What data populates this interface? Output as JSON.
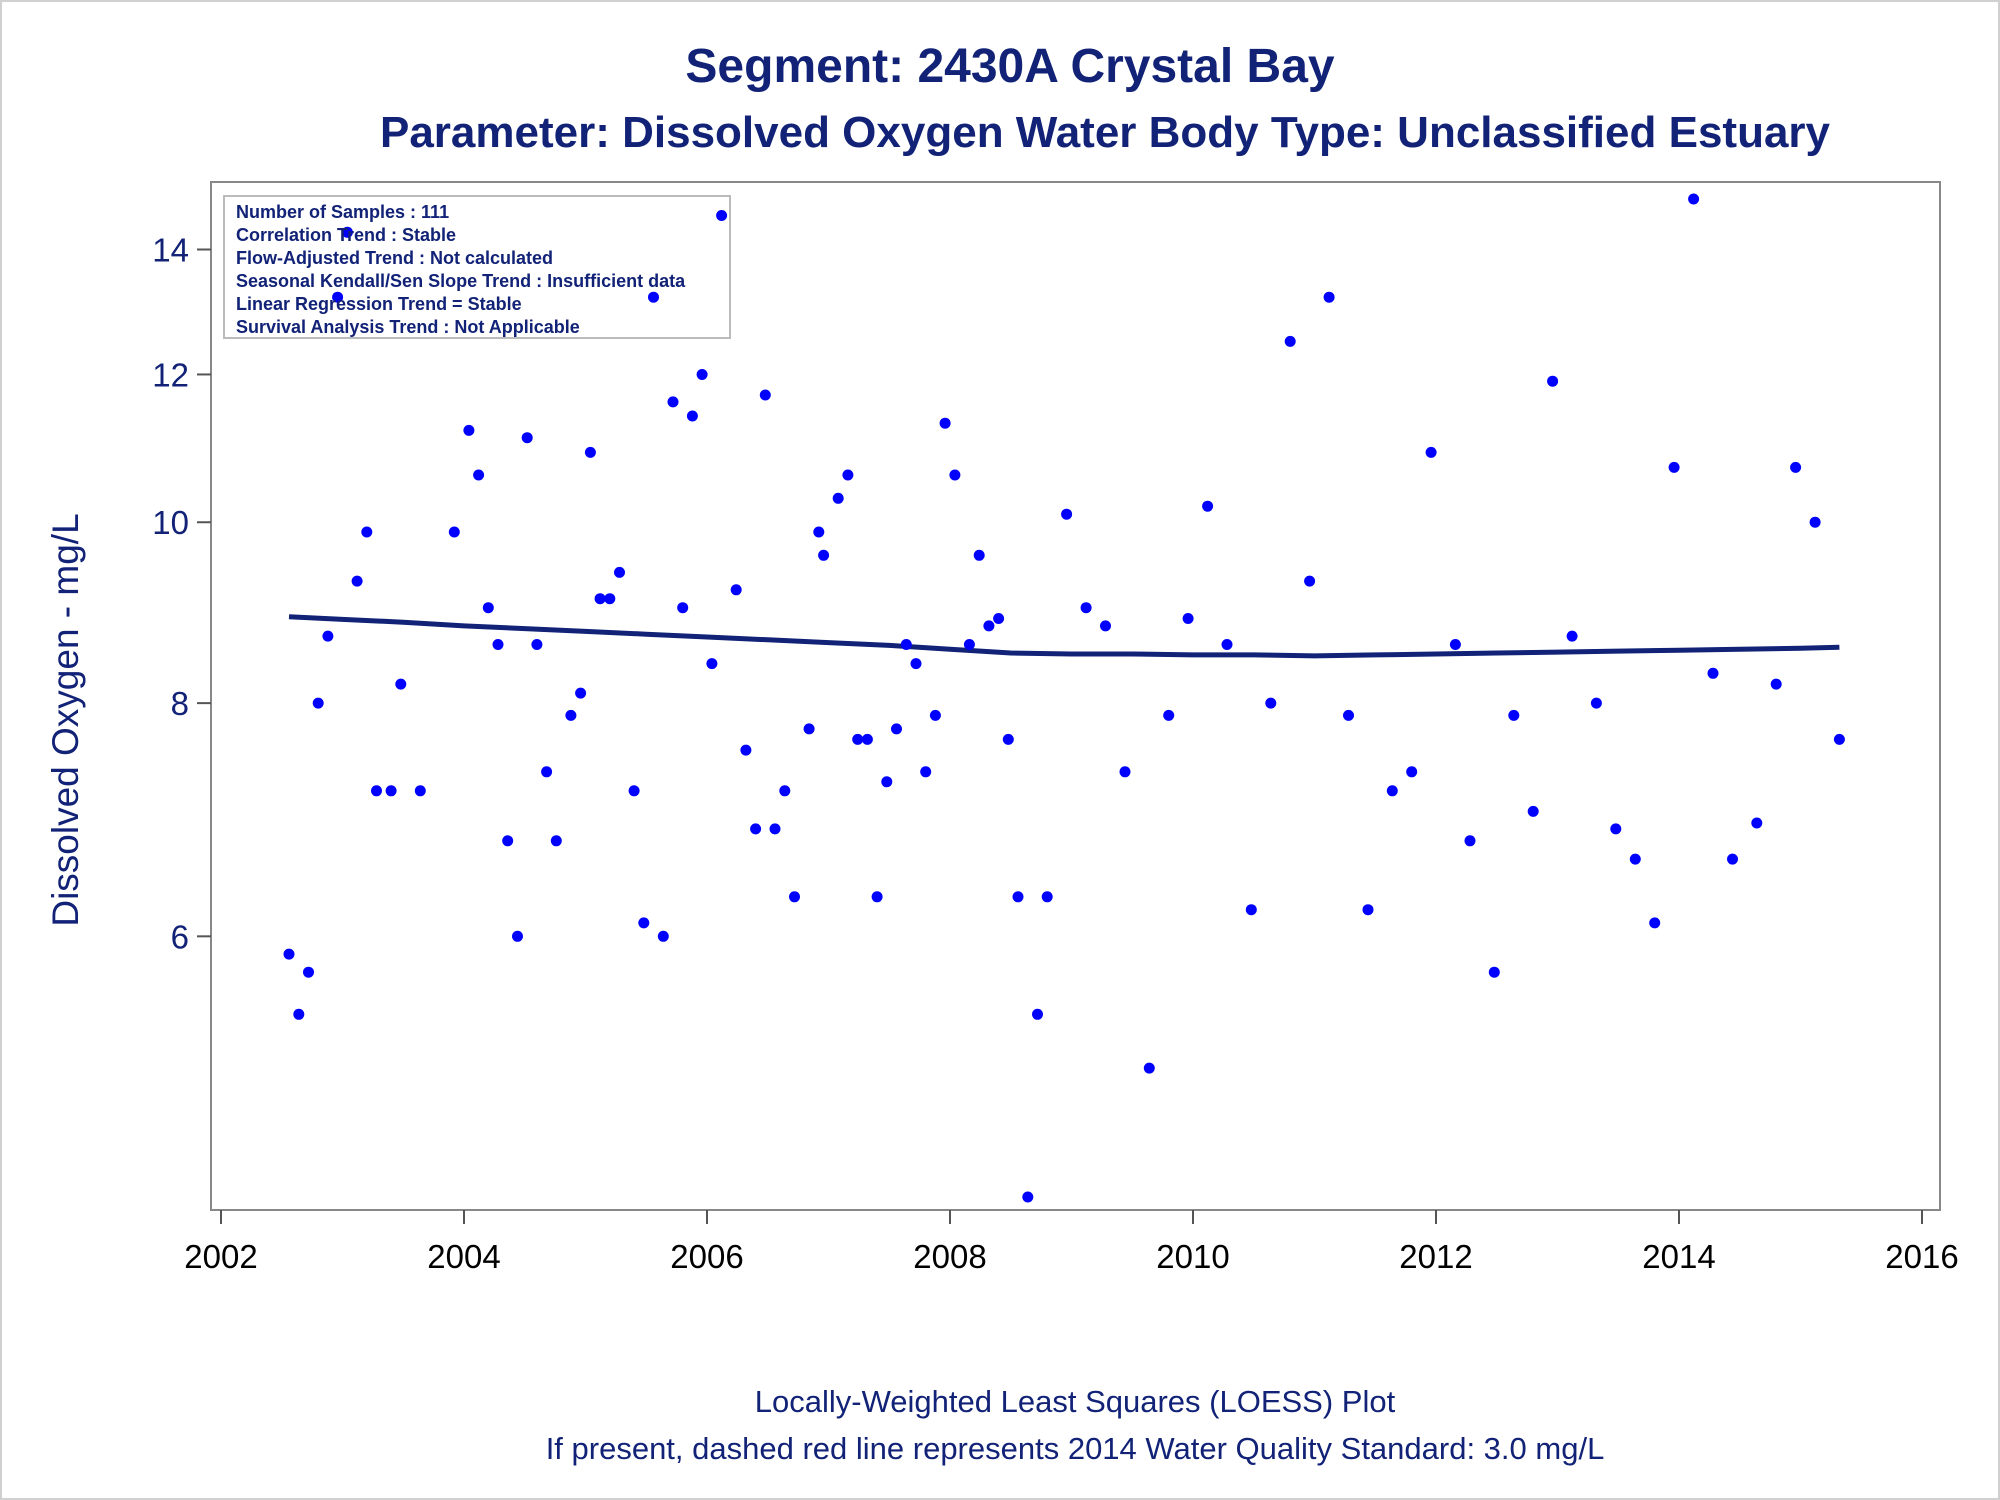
{
  "chart_data": {
    "type": "scatter",
    "title": "Segment: 2430A  Crystal Bay",
    "subtitle": "Parameter: Dissolved Oxygen   Water Body Type: Unclassified Estuary",
    "xlabel": "",
    "ylabel": "Dissolved Oxygen - mg/L",
    "y_scale": "log",
    "xlim": [
      2002,
      2016
    ],
    "ylim": [
      4.35,
      14.9
    ],
    "x_ticks": [
      "2002",
      "2004",
      "2006",
      "2008",
      "2010",
      "2012",
      "2014",
      "2016"
    ],
    "y_ticks": [
      "6",
      "8",
      "10",
      "12",
      "14"
    ],
    "grid": false,
    "info_box": [
      "Number of Samples : 111",
      "Correlation Trend : Stable",
      "Flow-Adjusted Trend : Not calculated",
      "Seasonal Kendall/Sen Slope Trend : Insufficient data",
      "Linear Regression Trend = Stable",
      "Survival Analysis Trend : Not Applicable"
    ],
    "series": [
      {
        "type": "scatter",
        "color": "#0000ff",
        "points": [
          [
            2002.56,
            5.87
          ],
          [
            2002.64,
            5.45
          ],
          [
            2002.72,
            5.74
          ],
          [
            2002.8,
            8.0
          ],
          [
            2002.88,
            8.69
          ],
          [
            2002.96,
            13.2
          ],
          [
            2003.04,
            14.3
          ],
          [
            2003.12,
            9.3
          ],
          [
            2003.2,
            9.88
          ],
          [
            2003.28,
            7.18
          ],
          [
            2003.4,
            7.18
          ],
          [
            2003.48,
            8.19
          ],
          [
            2003.64,
            7.18
          ],
          [
            2003.92,
            9.88
          ],
          [
            2004.04,
            11.2
          ],
          [
            2004.12,
            10.6
          ],
          [
            2004.2,
            9.0
          ],
          [
            2004.28,
            8.6
          ],
          [
            2004.36,
            6.75
          ],
          [
            2004.44,
            6.0
          ],
          [
            2004.52,
            11.1
          ],
          [
            2004.6,
            8.6
          ],
          [
            2004.68,
            7.35
          ],
          [
            2004.76,
            6.75
          ],
          [
            2004.88,
            7.88
          ],
          [
            2004.96,
            8.1
          ],
          [
            2005.04,
            10.9
          ],
          [
            2005.12,
            9.1
          ],
          [
            2005.2,
            9.1
          ],
          [
            2005.28,
            9.4
          ],
          [
            2005.4,
            7.18
          ],
          [
            2005.48,
            6.1
          ],
          [
            2005.56,
            13.2
          ],
          [
            2005.64,
            6.0
          ],
          [
            2005.72,
            11.6
          ],
          [
            2005.8,
            9.0
          ],
          [
            2005.88,
            11.4
          ],
          [
            2005.96,
            12.0
          ],
          [
            2006.04,
            8.4
          ],
          [
            2006.12,
            14.6
          ],
          [
            2006.24,
            9.2
          ],
          [
            2006.32,
            7.55
          ],
          [
            2006.4,
            6.85
          ],
          [
            2006.48,
            11.7
          ],
          [
            2006.56,
            6.85
          ],
          [
            2006.64,
            7.18
          ],
          [
            2006.72,
            6.3
          ],
          [
            2006.84,
            7.75
          ],
          [
            2006.92,
            9.88
          ],
          [
            2006.96,
            9.6
          ],
          [
            2007.08,
            10.3
          ],
          [
            2007.16,
            10.6
          ],
          [
            2007.24,
            7.65
          ],
          [
            2007.32,
            7.65
          ],
          [
            2007.4,
            6.3
          ],
          [
            2007.48,
            7.26
          ],
          [
            2007.56,
            7.75
          ],
          [
            2007.64,
            8.6
          ],
          [
            2007.72,
            8.4
          ],
          [
            2007.8,
            7.35
          ],
          [
            2007.88,
            7.88
          ],
          [
            2007.96,
            11.3
          ],
          [
            2008.04,
            10.6
          ],
          [
            2008.16,
            8.6
          ],
          [
            2008.24,
            9.6
          ],
          [
            2008.32,
            8.8
          ],
          [
            2008.4,
            8.88
          ],
          [
            2008.48,
            7.65
          ],
          [
            2008.56,
            6.3
          ],
          [
            2008.64,
            4.35
          ],
          [
            2008.72,
            5.45
          ],
          [
            2008.8,
            6.3
          ],
          [
            2008.96,
            10.1
          ],
          [
            2009.12,
            9.0
          ],
          [
            2009.28,
            8.8
          ],
          [
            2009.44,
            7.35
          ],
          [
            2009.64,
            5.1
          ],
          [
            2009.8,
            7.88
          ],
          [
            2009.96,
            8.88
          ],
          [
            2010.12,
            10.2
          ],
          [
            2010.28,
            8.6
          ],
          [
            2010.48,
            6.2
          ],
          [
            2010.64,
            8.0
          ],
          [
            2010.8,
            12.5
          ],
          [
            2010.96,
            9.3
          ],
          [
            2011.12,
            13.2
          ],
          [
            2011.28,
            7.88
          ],
          [
            2011.44,
            6.2
          ],
          [
            2011.64,
            7.18
          ],
          [
            2011.8,
            7.35
          ],
          [
            2011.96,
            10.9
          ],
          [
            2012.16,
            8.6
          ],
          [
            2012.28,
            6.75
          ],
          [
            2012.48,
            5.74
          ],
          [
            2012.64,
            7.88
          ],
          [
            2012.8,
            7.0
          ],
          [
            2012.96,
            11.9
          ],
          [
            2013.12,
            8.69
          ],
          [
            2013.32,
            8.0
          ],
          [
            2013.48,
            6.85
          ],
          [
            2013.64,
            6.6
          ],
          [
            2013.8,
            6.1
          ],
          [
            2013.96,
            10.7
          ],
          [
            2014.12,
            14.9
          ],
          [
            2014.28,
            8.3
          ],
          [
            2014.44,
            6.6
          ],
          [
            2014.64,
            6.9
          ],
          [
            2014.8,
            8.19
          ],
          [
            2014.96,
            10.7
          ],
          [
            2015.12,
            10.0
          ],
          [
            2015.32,
            7.65
          ]
        ]
      },
      {
        "type": "line",
        "name": "LOESS",
        "color": "#112277",
        "points": [
          [
            2002.56,
            8.9
          ],
          [
            2003.0,
            8.87
          ],
          [
            2003.5,
            8.84
          ],
          [
            2004.0,
            8.8
          ],
          [
            2004.5,
            8.77
          ],
          [
            2005.0,
            8.74
          ],
          [
            2005.5,
            8.71
          ],
          [
            2006.0,
            8.68
          ],
          [
            2006.5,
            8.65
          ],
          [
            2007.0,
            8.62
          ],
          [
            2007.5,
            8.59
          ],
          [
            2008.0,
            8.55
          ],
          [
            2008.5,
            8.51
          ],
          [
            2009.0,
            8.5
          ],
          [
            2009.5,
            8.5
          ],
          [
            2010.0,
            8.49
          ],
          [
            2010.5,
            8.49
          ],
          [
            2011.0,
            8.48
          ],
          [
            2011.5,
            8.49
          ],
          [
            2012.0,
            8.5
          ],
          [
            2012.5,
            8.51
          ],
          [
            2013.0,
            8.52
          ],
          [
            2013.5,
            8.53
          ],
          [
            2014.0,
            8.54
          ],
          [
            2014.5,
            8.55
          ],
          [
            2015.0,
            8.56
          ],
          [
            2015.32,
            8.57
          ]
        ]
      }
    ]
  },
  "footnotes": [
    "Locally-Weighted Least Squares (LOESS) Plot",
    "If present, dashed red line represents 2014 Water Quality Standard: 3.0 mg/L"
  ]
}
